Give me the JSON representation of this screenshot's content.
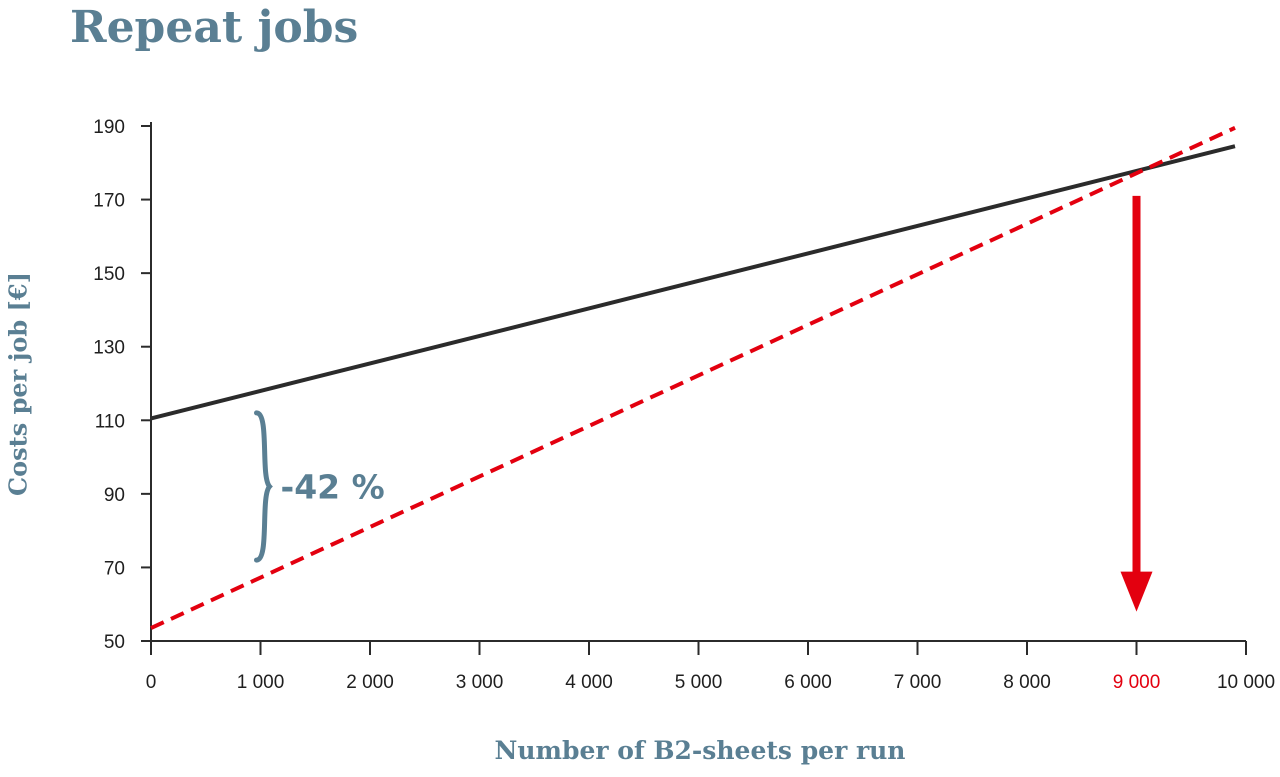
{
  "title": "Repeat jobs",
  "chart_data": {
    "type": "line",
    "xlabel": "Number of B2-sheets per run",
    "ylabel": "Costs per job [€]",
    "xlim": [
      0,
      10000
    ],
    "ylim": [
      50,
      190
    ],
    "x_ticks": [
      {
        "value": 0,
        "label": "0"
      },
      {
        "value": 1000,
        "label": "1 000"
      },
      {
        "value": 2000,
        "label": "2 000"
      },
      {
        "value": 3000,
        "label": "3 000"
      },
      {
        "value": 4000,
        "label": "4 000"
      },
      {
        "value": 5000,
        "label": "5 000"
      },
      {
        "value": 6000,
        "label": "6 000"
      },
      {
        "value": 7000,
        "label": "7 000"
      },
      {
        "value": 8000,
        "label": "8 000"
      },
      {
        "value": 9000,
        "label": "9 000",
        "highlight": true
      },
      {
        "value": 10000,
        "label": "10 000"
      }
    ],
    "y_ticks": [
      {
        "value": 190,
        "label": "190"
      },
      {
        "value": 170,
        "label": "170"
      },
      {
        "value": 150,
        "label": "150"
      },
      {
        "value": 130,
        "label": "130"
      },
      {
        "value": 110,
        "label": "110"
      },
      {
        "value": 90,
        "label": "90"
      },
      {
        "value": 70,
        "label": "70"
      },
      {
        "value": 50,
        "label": "50"
      }
    ],
    "grid": false,
    "series": [
      {
        "x": [
          0,
          9900
        ],
        "y": [
          110.5,
          184.5
        ],
        "color": "#2b2b2b",
        "style": "solid"
      },
      {
        "x": [
          0,
          9900
        ],
        "y": [
          53.5,
          189.5
        ],
        "color": "#e3000f",
        "style": "dashed"
      }
    ],
    "annotations": [
      {
        "type": "brace",
        "x": 1000,
        "y_range": [
          72,
          112
        ],
        "label": "-42 %",
        "color": "#5a7f93"
      },
      {
        "type": "arrow",
        "x": 9000,
        "y_from": 171,
        "y_to": 58,
        "color": "#e3000f"
      }
    ]
  }
}
